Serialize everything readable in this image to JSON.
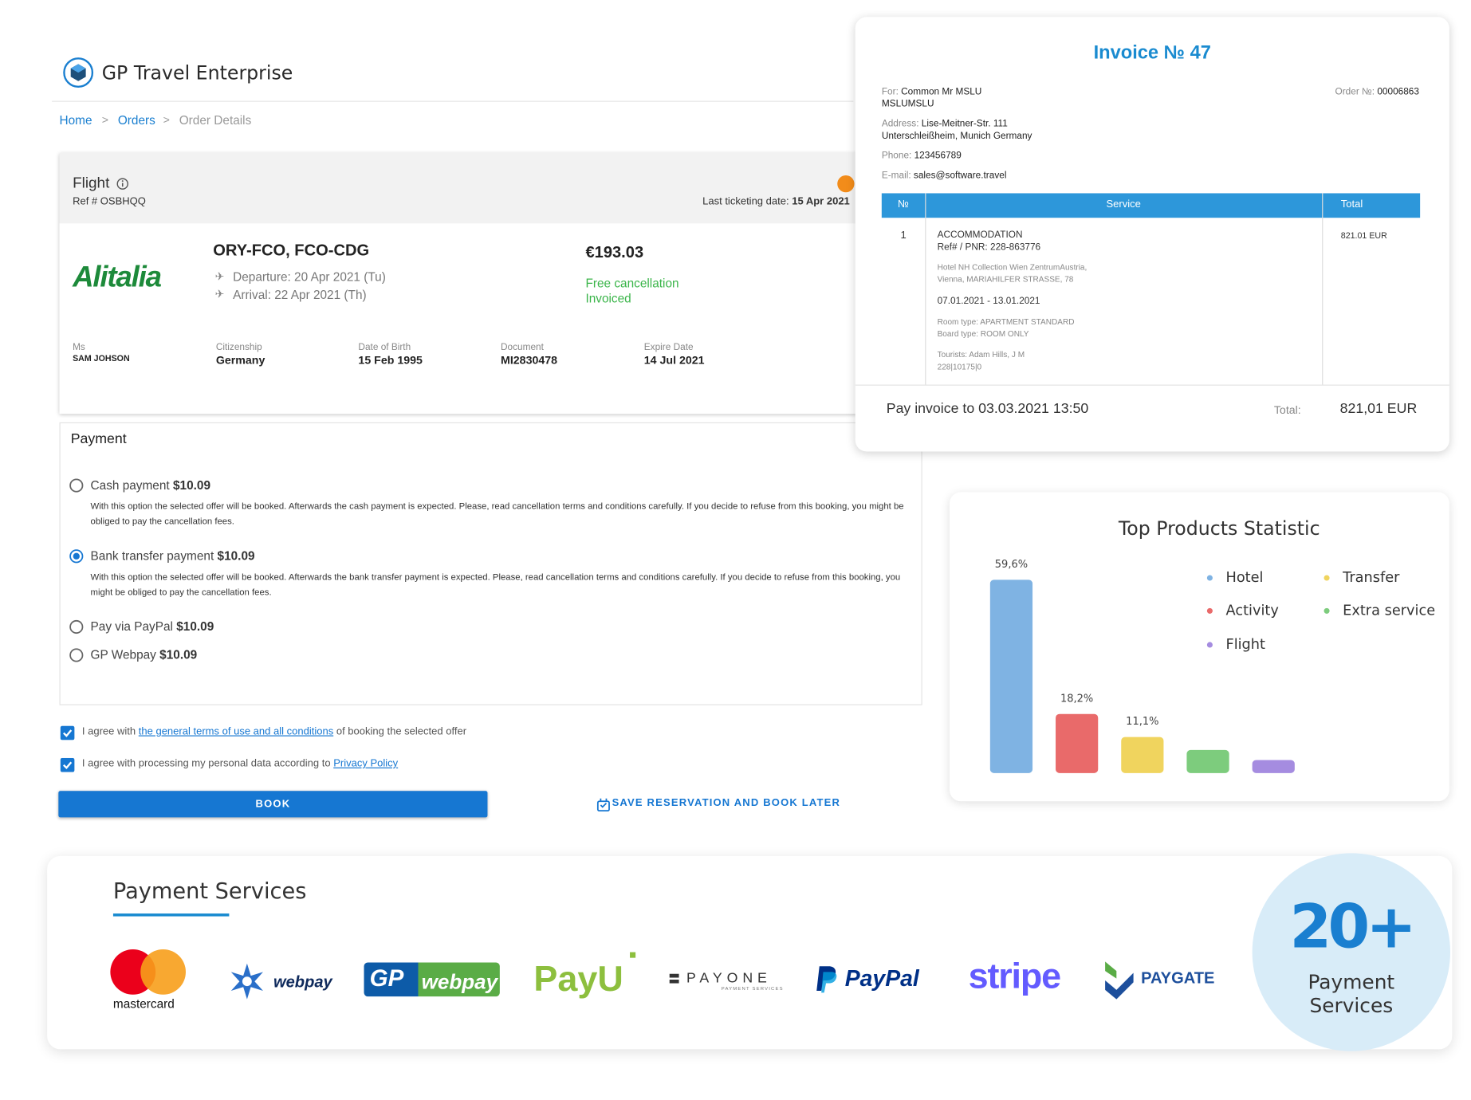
{
  "header": {
    "brand": "GP Travel Enterprise"
  },
  "breadcrumbs": [
    "Home",
    "Orders",
    "Order Details"
  ],
  "flight": {
    "title": "Flight",
    "ref": "Ref # OSBHQQ",
    "last_ticketing_label": "Last ticketing date:",
    "last_ticketing_date": "15 Apr 2021",
    "airline": "Alitalia",
    "route": "ORY-FCO, FCO-CDG",
    "departure": "Departure: 20 Apr 2021 (Tu)",
    "arrival": "Arrival: 22 Apr 2021 (Th)",
    "price": "€193.03",
    "status": [
      "Free cancellation",
      "Invoiced"
    ],
    "passenger": [
      {
        "label": "Ms",
        "value": "SAM JOHSON"
      },
      {
        "label": "Citizenship",
        "value": "Germany"
      },
      {
        "label": "Date of Birth",
        "value": "15 Feb 1995"
      },
      {
        "label": "Document",
        "value": "MI2830478"
      },
      {
        "label": "Expire Date",
        "value": "14 Jul 2021"
      }
    ]
  },
  "payment": {
    "title": "Payment",
    "options": [
      {
        "name": "Cash payment",
        "price": "$10.09",
        "selected": false,
        "description": "With this option the selected offer will be booked. Afterwards the cash payment is expected. Please, read cancellation terms and conditions carefully. If you decide to refuse from this booking, you might be obliged to pay the cancellation fees."
      },
      {
        "name": "Bank transfer payment",
        "price": "$10.09",
        "selected": true,
        "description": "With this option the selected offer will be booked. Afterwards the bank transfer payment is expected. Please, read cancellation terms and conditions carefully. If you decide to refuse from this booking, you might be obliged to pay the cancellation fees."
      },
      {
        "name": "Pay via PayPal",
        "price": "$10.09",
        "selected": false
      },
      {
        "name": "GP Webpay",
        "price": "$10.09",
        "selected": false
      }
    ]
  },
  "agreements": [
    {
      "before": "I agree with ",
      "link": "the general terms of use and all conditions",
      "after": " of booking the selected offer",
      "checked": true
    },
    {
      "before": "I agree with processing my personal data according to ",
      "link": "Privacy Policy",
      "checked": true
    }
  ],
  "actions": {
    "book": "BOOK",
    "save": "SAVE RESERVATION AND BOOK LATER"
  },
  "invoice": {
    "title": "Invoice № 47",
    "for_label": "For:",
    "for_value": "Common Mr MSLU",
    "for_value_2": "MSLUMSLU",
    "order_label": "Order №:",
    "order_value": "00006863",
    "address_label": "Address:",
    "address_1": "Lise-Meitner-Str. 111",
    "address_2": "Unterschleißheim, Munich Germany",
    "phone_label": "Phone:",
    "phone": "123456789",
    "email_label": "E-mail:",
    "email": "sales@software.travel",
    "columns": [
      "№",
      "Service",
      "Total"
    ],
    "row": {
      "number": "1",
      "lines": [
        "ACCOMMODATION",
        "Ref# / PNR: 228-863776",
        "Hotel NH Collection Wien ZentrumAustria,",
        "Vienna, MARIAHILFER STRASSE, 78",
        "07.01.2021 - 13.01.2021",
        "Room type: APARTMENT STANDARD",
        "Board type: ROOM ONLY",
        "Tourists: Adam Hills, J M",
        "228|10175|0"
      ],
      "total": "821.01 EUR"
    },
    "pay_to": "Pay invoice to 03.03.2021 13:50",
    "total_label": "Total:",
    "total": "821,01 EUR"
  },
  "chart_data": {
    "type": "bar",
    "title": "Top Products Statistic",
    "categories": [
      "Hotel",
      "Activity",
      "Transfer",
      "Extra service",
      "Flight"
    ],
    "values": [
      59.6,
      18.2,
      11.1,
      7.1,
      4.0
    ],
    "value_labels": [
      "59,6%",
      "18,2%",
      "11,1%",
      null,
      null
    ],
    "colors": [
      "#7fb3e3",
      "#e96a6a",
      "#f0d45e",
      "#7dcc7d",
      "#a58ce0"
    ]
  },
  "payment_services": {
    "title": "Payment Services",
    "mastercard": "mastercard",
    "webpay": "webpay",
    "gp_webpay": [
      "GP",
      "webpay"
    ],
    "payu": "PayU",
    "payone": "PAYONE",
    "payone_sub": "PAYMENT SERVICES",
    "paypal": "PayPal",
    "stripe": "stripe",
    "paygate": "PAYGATE",
    "badge_number": "20+",
    "badge_text": [
      "Payment",
      "Services"
    ]
  }
}
